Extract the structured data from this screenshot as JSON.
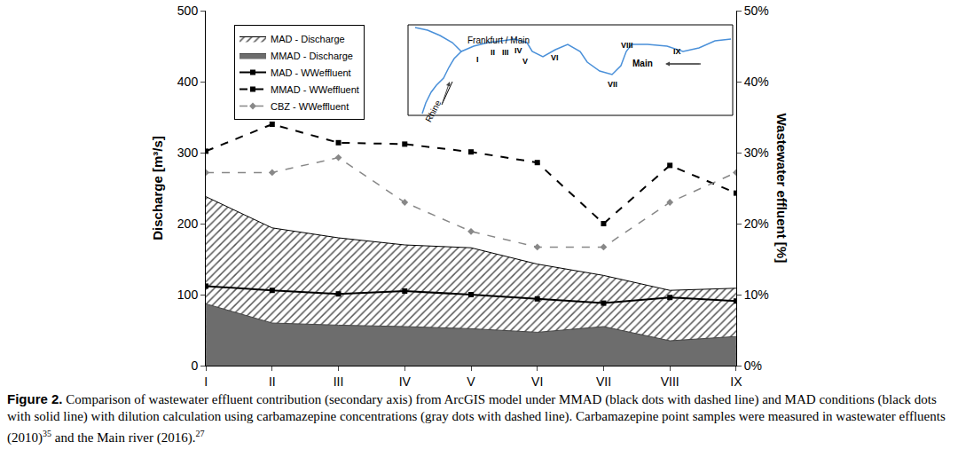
{
  "chart_data": {
    "type": "line",
    "categories": [
      "I",
      "II",
      "III",
      "IV",
      "V",
      "VI",
      "VII",
      "VIII",
      "IX"
    ],
    "y_label": "Discharge [m³/s]",
    "y2_label": "Wastewater effluent [%]",
    "ylim": [
      0,
      500
    ],
    "yticks": [
      0,
      100,
      200,
      300,
      400,
      500
    ],
    "y2lim": [
      0,
      50
    ],
    "y2ticks": [
      {
        "value": 0,
        "label": "0%"
      },
      {
        "value": 10,
        "label": "10%"
      },
      {
        "value": 20,
        "label": "20%"
      },
      {
        "value": 30,
        "label": "30%"
      },
      {
        "value": 40,
        "label": "40%"
      },
      {
        "value": 50,
        "label": "50%"
      }
    ],
    "grid": false,
    "legend": "upper left",
    "series": [
      {
        "name": "MAD - Discharge",
        "type": "hatched_area",
        "color": "#000000",
        "values": [
          238,
          194,
          180,
          170,
          166,
          143,
          127,
          106,
          109
        ]
      },
      {
        "name": "MMAD - Discharge",
        "type": "area",
        "color": "#6d6d6d",
        "values": [
          87,
          60,
          57,
          55,
          52,
          47,
          55,
          35,
          41
        ]
      },
      {
        "name": "MAD - WWeffluent",
        "type": "line",
        "axis": "y2",
        "color": "#000000",
        "marker": "square",
        "line_style": "solid",
        "values": [
          11.2,
          10.6,
          10.1,
          10.5,
          10.0,
          9.4,
          8.8,
          9.6,
          9.1
        ]
      },
      {
        "name": "MMAD - WWeffluent",
        "type": "line",
        "axis": "y2",
        "color": "#000000",
        "marker": "square",
        "line_style": "dash",
        "values": [
          30.2,
          34.0,
          31.4,
          31.2,
          30.1,
          28.6,
          20.0,
          28.2,
          24.3
        ]
      },
      {
        "name": "CBZ - WWeffluent",
        "type": "line",
        "axis": "y2",
        "color": "#888888",
        "marker": "diamond",
        "line_style": "dash",
        "values": [
          27.2,
          27.2,
          29.3,
          23.0,
          18.9,
          16.7,
          16.7,
          23.0,
          27.2
        ]
      }
    ],
    "map_labels": {
      "city": "Frankfurt / Main",
      "rivers": [
        "Rhine",
        "Main"
      ],
      "sites": [
        "I",
        "II",
        "III",
        "IV",
        "V",
        "VI",
        "VII",
        "VIII",
        "IX"
      ]
    },
    "caption": [
      {
        "bold": "Figure 2."
      },
      {
        "text": " Comparison of wastewater effluent contribution (secondary axis) from ArcGIS model under MMAD (black dots with dashed line) and MAD conditions (black dots with solid line) with dilution calculation using carbamazepine concentrations (gray dots with dashed line). Carbamazepine point samples were measured in wastewater effluents (2010)"
      },
      {
        "sup": "35"
      },
      {
        "text": " and the Main river (2016)."
      },
      {
        "sup": "27"
      }
    ]
  }
}
